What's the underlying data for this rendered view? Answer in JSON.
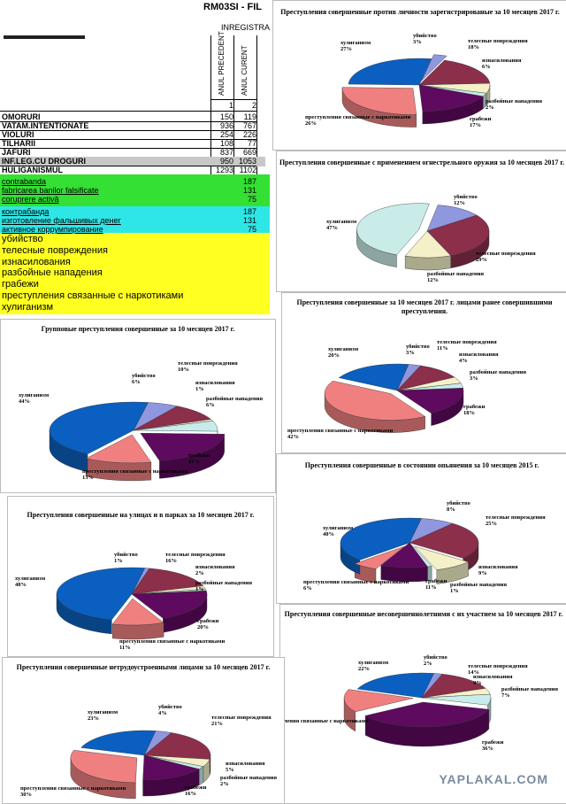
{
  "sheet": {
    "title": "RM03SI - FIL",
    "subtitle": "INREGISTRA",
    "col1": "ANUL PRECEDENT",
    "col2": "ANUL CURENT",
    "col_num1": "1",
    "col_num2": "2",
    "rows": [
      {
        "label": "OMORURI",
        "v1": "150",
        "v2": "119"
      },
      {
        "label": "VATAM.INTENTIONATE",
        "v1": "936",
        "v2": "767"
      },
      {
        "label": "VIOLURI",
        "v1": "254",
        "v2": "226"
      },
      {
        "label": "TILHARII",
        "v1": "108",
        "v2": "77"
      },
      {
        "label": "JAFURI",
        "v1": "837",
        "v2": "669"
      },
      {
        "label": "INF.LEG.CU DROGURI",
        "v1": "950",
        "v2": "1053"
      },
      {
        "label": "HULIGANISMUL",
        "v1": "1293",
        "v2": "1102"
      }
    ],
    "green_rows": [
      {
        "label": "contrabanda",
        "v2": "187"
      },
      {
        "label": "fabricarea banilor falsificate",
        "v2": "131"
      },
      {
        "label": "coruprere activă",
        "v2": "75"
      }
    ],
    "cyan_rows": [
      {
        "label": "контрабанда",
        "v2": "187"
      },
      {
        "label": "изготовление фальшивых денег",
        "v2": "131"
      },
      {
        "label": "активное коррумпирование",
        "v2": "75"
      }
    ],
    "yellow_rows": [
      "убийство",
      "телесные повреждения",
      "изнасилования",
      "разбойные нападения",
      "грабежи",
      "преступления связанные с наркотиками",
      "хулиганизм"
    ]
  },
  "colors": {
    "murder": "#8f97df",
    "injury": "#8b2f4b",
    "rape": "#f4f1c8",
    "robbery": "#c8ecec",
    "theft": "#5e0a5e",
    "drugs": "#f08080",
    "hooligan": "#0b5fc0",
    "gun": "#c9ece8"
  },
  "watermark": "YAPLAKAL.COM",
  "chart_data": [
    {
      "type": "pie",
      "title": "Преступления совершенные против личности зарегистрированые за 10 месяцев 2017 г.",
      "categories": [
        "убийство",
        "телесные повреждения",
        "изнасилования",
        "разбойные нападения",
        "грабежи",
        "преступления связанные с наркотиками",
        "хулиганизм"
      ],
      "values": [
        3,
        18,
        6,
        2,
        17,
        26,
        27
      ],
      "labels": [
        "убийство\n3%",
        "телесные повреждения\n18%",
        "изнасилования\n6%",
        "разбойные нападения\n2%",
        "грабежи\n17%",
        "преступления связанные с наркотиками\n26%",
        "хулиганизм\n27%"
      ]
    },
    {
      "type": "pie",
      "title": "Преступления совершенные с применением огнестрельного оружия за 10 месяцев 2017 г.",
      "categories": [
        "убийство",
        "телесные повреждения",
        "разбойные нападения",
        "хулиганизм"
      ],
      "values": [
        12,
        29,
        12,
        47
      ],
      "labels": [
        "убийство\n12%",
        "телесные повреждения\n29%",
        "разбойные нападения\n12%",
        "хулиганизм\n47%"
      ]
    },
    {
      "type": "pie",
      "title": "Преступления совершенные за 10 месяцев 2017 г. лицами ранее совершившими преступления.",
      "categories": [
        "убийство",
        "телесные повреждения",
        "изнасилования",
        "разбойные нападения",
        "грабежи",
        "преступления связанные с наркотиками",
        "хулиганизм"
      ],
      "values": [
        3,
        11,
        4,
        3,
        18,
        42,
        20
      ],
      "labels": [
        "убийство\n3%",
        "телесные повреждения\n11%",
        "изнасилования\n4%",
        "разбойные нападения\n3%",
        "грабежи\n18%",
        "преступления связанные с наркотиками\n42%",
        "хулиганизм\n20%"
      ]
    },
    {
      "type": "pie",
      "title": "Групповые преступления совершенные за 10 месяцев 2017 г.",
      "categories": [
        "убийство",
        "телесные повреждения",
        "изнасилования",
        "разбойные нападения",
        "грабежи",
        "преступления связанные с наркотиками",
        "хулиганизм"
      ],
      "values": [
        6,
        10,
        1,
        6,
        21,
        13,
        44
      ],
      "labels": [
        "убийство\n6%",
        "телесные повреждения\n10%",
        "изнасилования\n1%",
        "разбойные нападения\n6%",
        "грабежи\n21%",
        "преступления связанные с наркотиками\n13%",
        "хулиганизм\n44%"
      ]
    },
    {
      "type": "pie",
      "title": "Преступления совершенные в состоянии опьянения за 10 месяцев 2015 г.",
      "categories": [
        "убийство",
        "телесные повреждения",
        "изнасилования",
        "разбойные нападения",
        "грабежи",
        "преступления связанные с наркотиками",
        "хулиганизм"
      ],
      "values": [
        8,
        25,
        9,
        1,
        11,
        6,
        40
      ],
      "labels": [
        "убийство\n8%",
        "телесные повреждения\n25%",
        "изнасилования\n9%",
        "разбойные нападения\n1%",
        "грабежи\n11%",
        "преступления связанные с наркотиками\n6%",
        "хулиганизм\n40%"
      ]
    },
    {
      "type": "pie",
      "title": "Преступления совершенные на улицах и в парках за 10 месяцев 2017 г.",
      "categories": [
        "убийство",
        "телесные повреждения",
        "изнасилования",
        "разбойные нападения",
        "грабежи",
        "преступления связанные с наркотиками",
        "хулиганизм"
      ],
      "values": [
        1,
        16,
        2,
        1,
        20,
        11,
        48
      ],
      "labels": [
        "убийство\n1%",
        "телесные повреждения\n16%",
        "изнасилования\n2%",
        "разбойные нападения\n1%",
        "грабежи\n20%",
        "преступления связанные с наркотиками\n11%",
        "хулиганизм\n48%"
      ]
    },
    {
      "type": "pie",
      "title": "Преступления совершенные несовершеннолетними с их участием за 10 месяцев 2017 г.",
      "categories": [
        "убийство",
        "телесные повреждения",
        "изнасилования",
        "разбойные нападения",
        "грабежи",
        "преступления связанные с наркотиками",
        "хулиганизм"
      ],
      "values": [
        2,
        14,
        4,
        7,
        36,
        15,
        22
      ],
      "labels": [
        "убийство\n2%",
        "телесные повреждения\n14%",
        "изнасилования\n4%",
        "разбойные нападения\n7%",
        "грабежи\n36%",
        "пления связанные с наркотиками",
        "хулиганизм\n22%"
      ]
    },
    {
      "type": "pie",
      "title": "Преступления совершенные нетрудоустроенными лицами за 10 месяцев 2017 г.",
      "categories": [
        "убийство",
        "телесные повреждения",
        "изнасилования",
        "разбойные нападения",
        "грабежи",
        "преступления связанные с наркотиками",
        "хулиганизм"
      ],
      "values": [
        4,
        21,
        5,
        2,
        16,
        30,
        23
      ],
      "labels": [
        "убийство\n4%",
        "телесные повреждения\n21%",
        "изнасилования\n5%",
        "разбойные нападения\n2%",
        "грабежи\n16%",
        "преступления связанные с наркотиками\n30%",
        "хулиганизм\n23%"
      ]
    }
  ]
}
